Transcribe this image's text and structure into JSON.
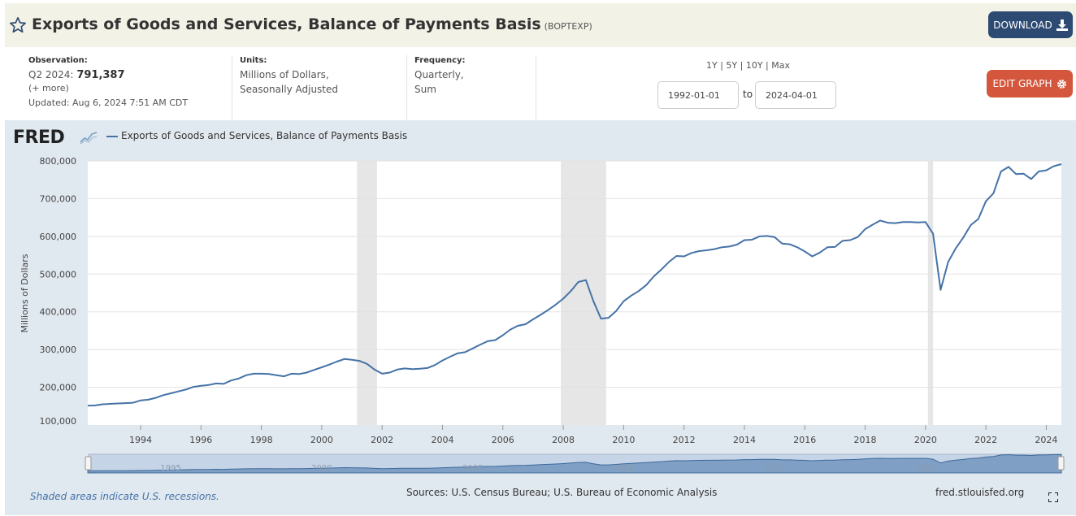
{
  "header": {
    "title": "Exports of Goods and Services, Balance of Payments Basis",
    "series_id": "(BOPTEXP)",
    "download_label": "DOWNLOAD",
    "edit_graph_label": "EDIT GRAPH"
  },
  "meta": {
    "observation_label": "Observation:",
    "observation_period": "Q2 2024:",
    "observation_value": "791,387",
    "more_label": "(+ more)",
    "updated_label": "Updated: Aug 6, 2024 7:51 AM CDT",
    "units_label": "Units:",
    "units_line1": "Millions of Dollars,",
    "units_line2": "Seasonally Adjusted",
    "frequency_label": "Frequency:",
    "frequency_line1": "Quarterly,",
    "frequency_line2": "Sum"
  },
  "range": {
    "links": "1Y | 5Y | 10Y | Max",
    "start_date": "1992-01-01",
    "to_label": "to",
    "end_date": "2024-04-01"
  },
  "chart_panel": {
    "logo": "FRED",
    "legend": "Exports of Goods and Services, Balance of Payments Basis",
    "footer_note": "Shaded areas indicate U.S. recessions.",
    "sources": "Sources: U.S. Census Bureau; U.S. Bureau of Economic Analysis",
    "site": "fred.stlouisfed.org"
  },
  "colors": {
    "line": "#4572a7",
    "recession": "#e6e6e6",
    "panel": "#e1e9f0",
    "download_btn": "#2d4a73",
    "edit_btn": "#d4573d"
  },
  "chart_data": {
    "type": "line",
    "ylabel": "Millions of Dollars",
    "ylim": [
      100000,
      800000
    ],
    "xlim": [
      1992.25,
      2024.5
    ],
    "y_ticks": [
      "100,000",
      "200,000",
      "300,000",
      "400,000",
      "500,000",
      "600,000",
      "700,000",
      "800,000"
    ],
    "x_ticks": [
      "1994",
      "1996",
      "1998",
      "2000",
      "2002",
      "2004",
      "2006",
      "2008",
      "2010",
      "2012",
      "2014",
      "2016",
      "2018",
      "2020",
      "2022",
      "2024"
    ],
    "navigator_ticks": [
      "1995",
      "2000",
      "2005",
      "2010",
      "2015",
      "2020"
    ],
    "recessions": [
      [
        2001.17,
        2001.83
      ],
      [
        2007.92,
        2009.42
      ],
      [
        2020.08,
        2020.25
      ]
    ],
    "series": [
      {
        "name": "Exports of Goods and Services, Balance of Payments Basis",
        "points": [
          [
            1992.25,
            151000
          ],
          [
            1992.5,
            152000
          ],
          [
            1992.75,
            155000
          ],
          [
            1993.0,
            156000
          ],
          [
            1993.25,
            157000
          ],
          [
            1993.5,
            158000
          ],
          [
            1993.75,
            159000
          ],
          [
            1994.0,
            165000
          ],
          [
            1994.25,
            167000
          ],
          [
            1994.5,
            172000
          ],
          [
            1994.75,
            179000
          ],
          [
            1995.0,
            184000
          ],
          [
            1995.25,
            189000
          ],
          [
            1995.5,
            194000
          ],
          [
            1995.75,
            201000
          ],
          [
            1996.0,
            204000
          ],
          [
            1996.25,
            206000
          ],
          [
            1996.5,
            210000
          ],
          [
            1996.75,
            209000
          ],
          [
            1997.0,
            218000
          ],
          [
            1997.25,
            223000
          ],
          [
            1997.5,
            232000
          ],
          [
            1997.75,
            236000
          ],
          [
            1998.0,
            236000
          ],
          [
            1998.25,
            235000
          ],
          [
            1998.5,
            232000
          ],
          [
            1998.75,
            229000
          ],
          [
            1999.0,
            236000
          ],
          [
            1999.25,
            235000
          ],
          [
            1999.5,
            239000
          ],
          [
            1999.75,
            246000
          ],
          [
            2000.0,
            253000
          ],
          [
            2000.25,
            260000
          ],
          [
            2000.5,
            268000
          ],
          [
            2000.75,
            275000
          ],
          [
            2001.0,
            273000
          ],
          [
            2001.25,
            270000
          ],
          [
            2001.5,
            262000
          ],
          [
            2001.75,
            247000
          ],
          [
            2002.0,
            236000
          ],
          [
            2002.25,
            239000
          ],
          [
            2002.5,
            247000
          ],
          [
            2002.75,
            250000
          ],
          [
            2003.0,
            248000
          ],
          [
            2003.25,
            249000
          ],
          [
            2003.5,
            251000
          ],
          [
            2003.75,
            259000
          ],
          [
            2004.0,
            271000
          ],
          [
            2004.25,
            281000
          ],
          [
            2004.5,
            290000
          ],
          [
            2004.75,
            293000
          ],
          [
            2005.0,
            303000
          ],
          [
            2005.25,
            313000
          ],
          [
            2005.5,
            322000
          ],
          [
            2005.75,
            325000
          ],
          [
            2006.0,
            338000
          ],
          [
            2006.25,
            353000
          ],
          [
            2006.5,
            363000
          ],
          [
            2006.75,
            367000
          ],
          [
            2007.0,
            380000
          ],
          [
            2007.25,
            392000
          ],
          [
            2007.5,
            405000
          ],
          [
            2007.75,
            419000
          ],
          [
            2008.0,
            435000
          ],
          [
            2008.25,
            455000
          ],
          [
            2008.5,
            479000
          ],
          [
            2008.75,
            484000
          ],
          [
            2009.0,
            428000
          ],
          [
            2009.25,
            382000
          ],
          [
            2009.5,
            384000
          ],
          [
            2009.75,
            402000
          ],
          [
            2010.0,
            428000
          ],
          [
            2010.25,
            443000
          ],
          [
            2010.5,
            455000
          ],
          [
            2010.75,
            471000
          ],
          [
            2011.0,
            494000
          ],
          [
            2011.25,
            512000
          ],
          [
            2011.5,
            532000
          ],
          [
            2011.75,
            548000
          ],
          [
            2012.0,
            547000
          ],
          [
            2012.25,
            556000
          ],
          [
            2012.5,
            561000
          ],
          [
            2012.75,
            563000
          ],
          [
            2013.0,
            566000
          ],
          [
            2013.25,
            571000
          ],
          [
            2013.5,
            573000
          ],
          [
            2013.75,
            578000
          ],
          [
            2014.0,
            590000
          ],
          [
            2014.25,
            591000
          ],
          [
            2014.5,
            600000
          ],
          [
            2014.75,
            601000
          ],
          [
            2015.0,
            598000
          ],
          [
            2015.25,
            581000
          ],
          [
            2015.5,
            579000
          ],
          [
            2015.75,
            571000
          ],
          [
            2016.0,
            560000
          ],
          [
            2016.25,
            547000
          ],
          [
            2016.5,
            557000
          ],
          [
            2016.75,
            571000
          ],
          [
            2017.0,
            572000
          ],
          [
            2017.25,
            588000
          ],
          [
            2017.5,
            590000
          ],
          [
            2017.75,
            598000
          ],
          [
            2018.0,
            619000
          ],
          [
            2018.25,
            631000
          ],
          [
            2018.5,
            642000
          ],
          [
            2018.75,
            636000
          ],
          [
            2019.0,
            635000
          ],
          [
            2019.25,
            638000
          ],
          [
            2019.5,
            638000
          ],
          [
            2019.75,
            637000
          ],
          [
            2020.0,
            638000
          ],
          [
            2020.25,
            607000
          ],
          [
            2020.5,
            458000
          ],
          [
            2020.75,
            532000
          ],
          [
            2021.0,
            568000
          ],
          [
            2021.25,
            597000
          ],
          [
            2021.5,
            630000
          ],
          [
            2021.75,
            646000
          ],
          [
            2022.0,
            693000
          ],
          [
            2022.25,
            714000
          ],
          [
            2022.5,
            772000
          ],
          [
            2022.75,
            784000
          ],
          [
            2023.0,
            765000
          ],
          [
            2023.25,
            766000
          ],
          [
            2023.5,
            752000
          ],
          [
            2023.75,
            772000
          ],
          [
            2024.0,
            775000
          ],
          [
            2024.25,
            786000
          ],
          [
            2024.5,
            791387
          ]
        ]
      }
    ]
  }
}
